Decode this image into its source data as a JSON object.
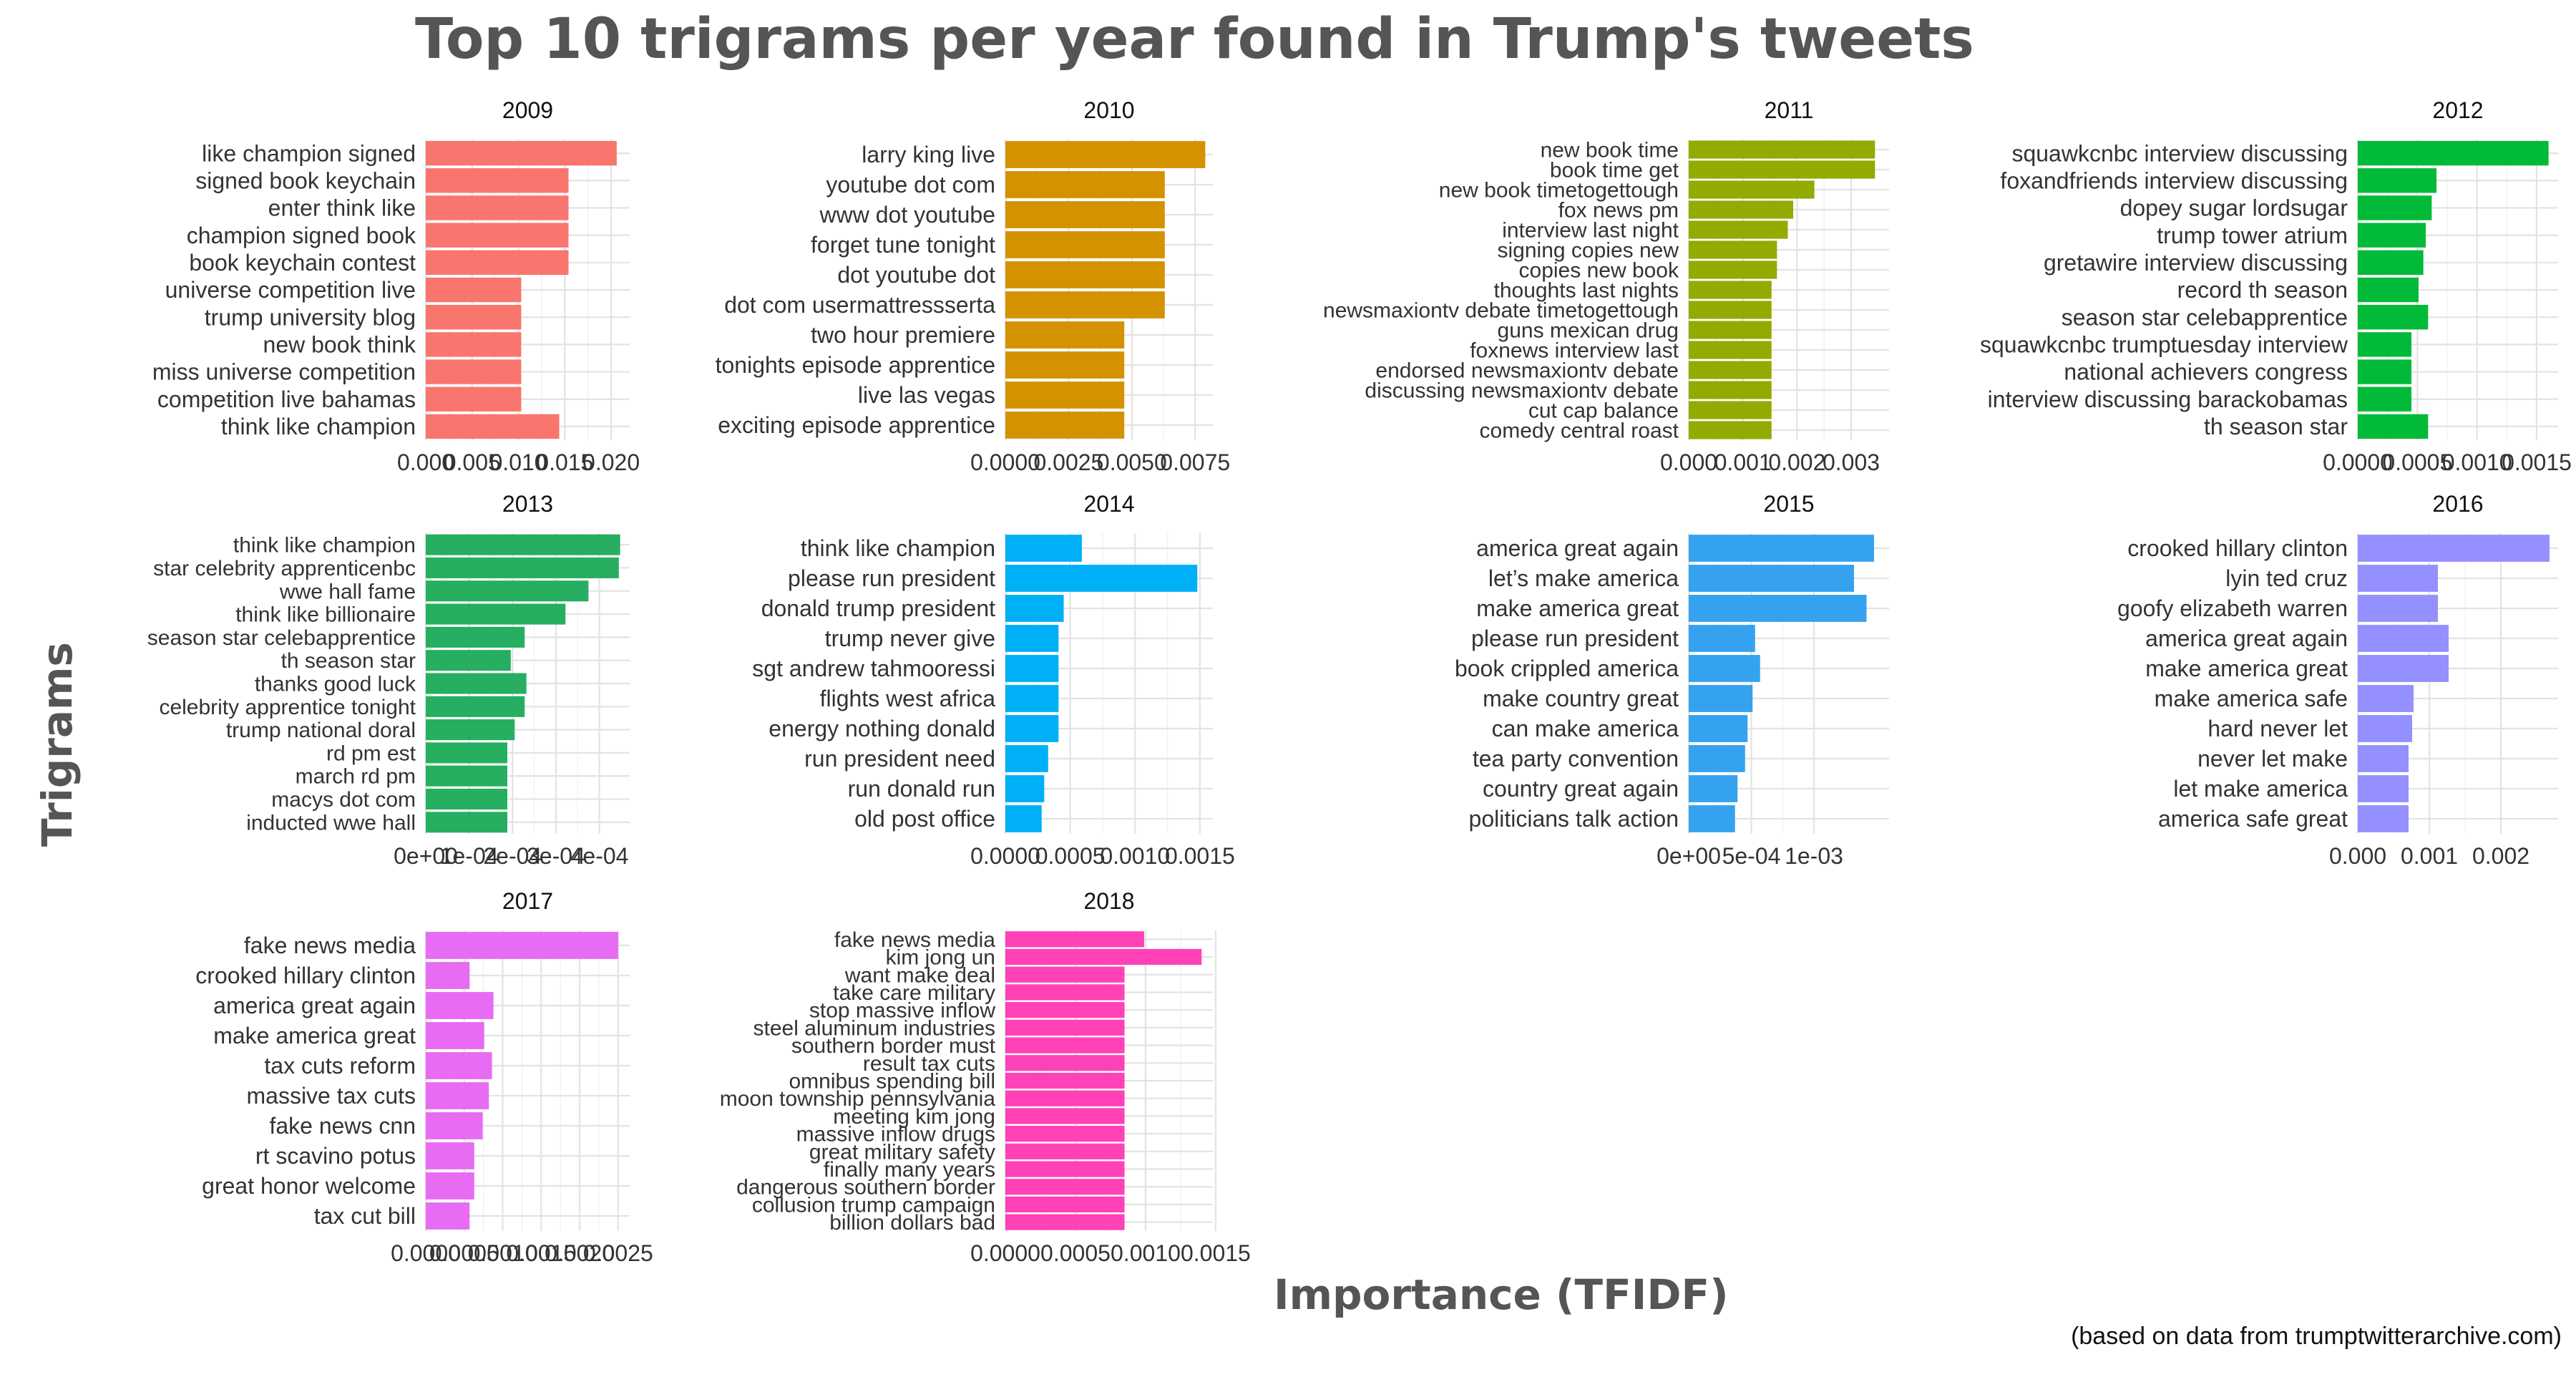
{
  "title": "Top 10 trigrams per year found in Trump's tweets",
  "xlabel": "Importance (TFIDF)",
  "ylabel": "Trigrams",
  "caption": "(based on data from trumptwitterarchive.com)",
  "chart_data": [
    {
      "type": "bar",
      "orientation": "horizontal",
      "facet": "2009",
      "color": "#F8766D",
      "categories": [
        "like champion signed",
        "signed book keychain",
        "enter think like",
        "champion signed book",
        "book keychain contest",
        "universe competition live",
        "trump university blog",
        "new book think",
        "miss universe competition",
        "competition live bahamas",
        "think like champion"
      ],
      "values": [
        0.0206,
        0.0154,
        0.0154,
        0.0154,
        0.0154,
        0.0103,
        0.0103,
        0.0103,
        0.0103,
        0.0103,
        0.0144
      ],
      "xlim": [
        0,
        0.022
      ],
      "ticks": [
        0,
        0.005,
        0.01,
        0.015,
        0.02
      ],
      "tick_labels": [
        "0.000",
        "0.005",
        "0.010",
        "0.015",
        "0.020"
      ]
    },
    {
      "type": "bar",
      "orientation": "horizontal",
      "facet": "2010",
      "color": "#D39200",
      "categories": [
        "larry king live",
        "youtube dot com",
        "www dot youtube",
        "forget tune tonight",
        "dot youtube dot",
        "dot com usermattressserta",
        "two hour premiere",
        "tonights episode apprentice",
        "live las vegas",
        "exciting episode apprentice"
      ],
      "values": [
        0.0079,
        0.0063,
        0.0063,
        0.0063,
        0.0063,
        0.0063,
        0.0047,
        0.0047,
        0.0047,
        0.0047
      ],
      "xlim": [
        0,
        0.0082
      ],
      "ticks": [
        0,
        0.0025,
        0.005,
        0.0075
      ],
      "tick_labels": [
        "0.0000",
        "0.0025",
        "0.0050",
        "0.0075"
      ]
    },
    {
      "type": "bar",
      "orientation": "horizontal",
      "facet": "2011",
      "color": "#93AA00",
      "categories": [
        "new book time",
        "book time get",
        "new book timetogettough",
        "fox news pm",
        "interview last night",
        "signing copies new",
        "copies new book",
        "thoughts last nights",
        "newsmaxiontv debate timetogettough",
        "guns mexican drug",
        "foxnews interview last",
        "endorsed newsmaxiontv debate",
        "discussing newsmaxiontv debate",
        "cut cap balance",
        "comedy central roast"
      ],
      "values": [
        0.00344,
        0.00344,
        0.00232,
        0.00193,
        0.00183,
        0.00163,
        0.00163,
        0.00153,
        0.00153,
        0.00153,
        0.00153,
        0.00153,
        0.00153,
        0.00153,
        0.00153
      ],
      "xlim": [
        0,
        0.0037
      ],
      "ticks": [
        0,
        0.001,
        0.002,
        0.003
      ],
      "tick_labels": [
        "0.000",
        "0.001",
        "0.002",
        "0.003"
      ]
    },
    {
      "type": "bar",
      "orientation": "horizontal",
      "facet": "2012",
      "color": "#00BA38",
      "categories": [
        "squawkcnbc interview discussing",
        "foxandfriends interview discussing",
        "dopey sugar lordsugar",
        "trump tower atrium",
        "gretawire interview discussing",
        "record th season",
        "season star celebapprentice",
        "squawkcnbc trumptuesday interview",
        "national achievers congress",
        "interview discussing barackobamas",
        "th season star"
      ],
      "values": [
        0.0016,
        0.00066,
        0.00062,
        0.00057,
        0.00055,
        0.00051,
        0.00059,
        0.00045,
        0.00045,
        0.00045,
        0.00059
      ],
      "xlim": [
        0,
        0.00168
      ],
      "ticks": [
        0,
        0.0005,
        0.001,
        0.0015
      ],
      "tick_labels": [
        "0.0000",
        "0.0005",
        "0.0010",
        "0.0015"
      ]
    },
    {
      "type": "bar",
      "orientation": "horizontal",
      "facet": "2013",
      "color": "#27AE60",
      "categories": [
        "think like champion",
        "star celebrity apprenticenbc",
        "wwe hall fame",
        "think like billionaire",
        "season star celebapprentice",
        "th season star",
        "thanks good luck",
        "celebrity apprentice tonight",
        "trump national doral",
        "rd pm est",
        "march rd pm",
        "macys dot com",
        "inducted wwe hall"
      ],
      "values": [
        0.000448,
        0.000445,
        0.000375,
        0.000322,
        0.000228,
        0.000196,
        0.000232,
        0.000228,
        0.000205,
        0.000188,
        0.000188,
        0.000188,
        0.000188
      ],
      "xlim": [
        0,
        0.00047
      ],
      "ticks": [
        0,
        0.0001,
        0.0002,
        0.0003,
        0.0004
      ],
      "tick_labels": [
        "0e+00",
        "1e-04",
        "2e-04",
        "3e-04",
        "4e-04"
      ]
    },
    {
      "type": "bar",
      "orientation": "horizontal",
      "facet": "2014",
      "color": "#00B0F6",
      "categories": [
        "think like champion",
        "please run president",
        "donald trump president",
        "trump never give",
        "sgt andrew tahmooressi",
        "flights west africa",
        "energy nothing donald",
        "run president need",
        "run donald run",
        "old post office"
      ],
      "values": [
        0.00059,
        0.00148,
        0.00045,
        0.00041,
        0.00041,
        0.00041,
        0.00041,
        0.00033,
        0.0003,
        0.00028
      ],
      "xlim": [
        0,
        0.0016
      ],
      "ticks": [
        0,
        0.0005,
        0.001,
        0.0015
      ],
      "tick_labels": [
        "0.0000",
        "0.0005",
        "0.0010",
        "0.0015"
      ]
    },
    {
      "type": "bar",
      "orientation": "horizontal",
      "facet": "2015",
      "color": "#35A2F0",
      "categories": [
        "america great again",
        "let’s make america",
        "make america great",
        "please run president",
        "book crippled america",
        "make country great",
        "can make america",
        "tea party convention",
        "country great again",
        "politicians talk action"
      ],
      "values": [
        0.00148,
        0.00132,
        0.00142,
        0.00053,
        0.00057,
        0.00051,
        0.00047,
        0.00045,
        0.00039,
        0.00037
      ],
      "xlim": [
        0,
        0.0016
      ],
      "ticks": [
        0,
        0.0005,
        0.001
      ],
      "tick_labels": [
        "0e+00",
        "5e-04",
        "1e-03"
      ]
    },
    {
      "type": "bar",
      "orientation": "horizontal",
      "facet": "2016",
      "color": "#9590FF",
      "categories": [
        "crooked hillary clinton",
        "lyin ted cruz",
        "goofy elizabeth warren",
        "america great again",
        "make america great",
        "make america safe",
        "hard never let",
        "never let make",
        "let make america",
        "america safe great"
      ],
      "values": [
        0.00268,
        0.00112,
        0.00112,
        0.00127,
        0.00127,
        0.00078,
        0.00076,
        0.00071,
        0.00071,
        0.00071
      ],
      "xlim": [
        0,
        0.0028
      ],
      "ticks": [
        0,
        0.001,
        0.002
      ],
      "tick_labels": [
        "0.000",
        "0.001",
        "0.002"
      ]
    },
    {
      "type": "bar",
      "orientation": "horizontal",
      "facet": "2017",
      "color": "#E76BF3",
      "categories": [
        "fake news media",
        "crooked hillary clinton",
        "america great again",
        "make america great",
        "tax cuts reform",
        "massive tax cuts",
        "fake news cnn",
        "rt scavino potus",
        "great honor welcome",
        "tax cut bill"
      ],
      "values": [
        0.0025,
        0.00057,
        0.00088,
        0.00076,
        0.00086,
        0.00082,
        0.00074,
        0.00063,
        0.00063,
        0.00057
      ],
      "xlim": [
        0,
        0.00265
      ],
      "ticks": [
        0,
        0.0005,
        0.001,
        0.0015,
        0.002,
        0.0025
      ],
      "tick_labels": [
        "0.0000",
        "0.0005",
        "0.0010",
        "0.0015",
        "0.0020",
        "0.0025"
      ]
    },
    {
      "type": "bar",
      "orientation": "horizontal",
      "facet": "2018",
      "color": "#FF42B8",
      "categories": [
        "fake news media",
        "kim jong un",
        "want make deal",
        "take care military",
        "stop massive inflow",
        "steel aluminum industries",
        "southern border must",
        "result tax cuts",
        "omnibus spending bill",
        "moon township pennsylvania",
        "meeting kim jong",
        "massive inflow drugs",
        "great military safety",
        "finally many years",
        "dangerous southern border",
        "collusion trump campaign",
        "billion dollars bad"
      ],
      "values": [
        0.00099,
        0.0014,
        0.00085,
        0.00085,
        0.00085,
        0.00085,
        0.00085,
        0.00085,
        0.00085,
        0.00085,
        0.00085,
        0.00085,
        0.00085,
        0.00085,
        0.00085,
        0.00085,
        0.00085
      ],
      "xlim": [
        0,
        0.00148
      ],
      "ticks": [
        0,
        0.0005,
        0.001,
        0.0015
      ],
      "tick_labels": [
        "0.0000",
        "0.0005",
        "0.0010",
        "0.0015"
      ]
    }
  ]
}
